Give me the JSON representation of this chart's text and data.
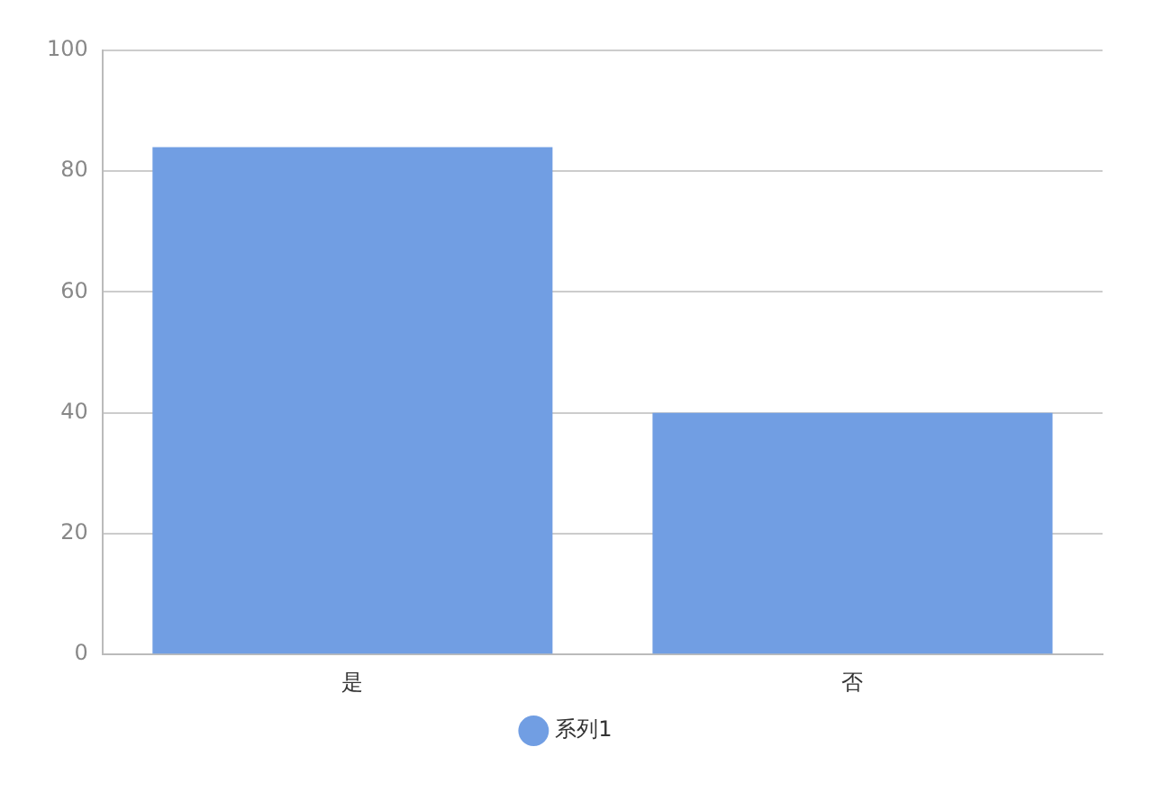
{
  "chart_data": {
    "type": "bar",
    "categories": [
      "是",
      "否"
    ],
    "series": [
      {
        "name": "系列1",
        "color": "#719ee3",
        "values": [
          84,
          40
        ]
      }
    ],
    "ylim": [
      0,
      100
    ],
    "yticks": [
      0,
      20,
      40,
      60,
      80,
      100
    ],
    "grid": "y",
    "legend": "bottom"
  }
}
